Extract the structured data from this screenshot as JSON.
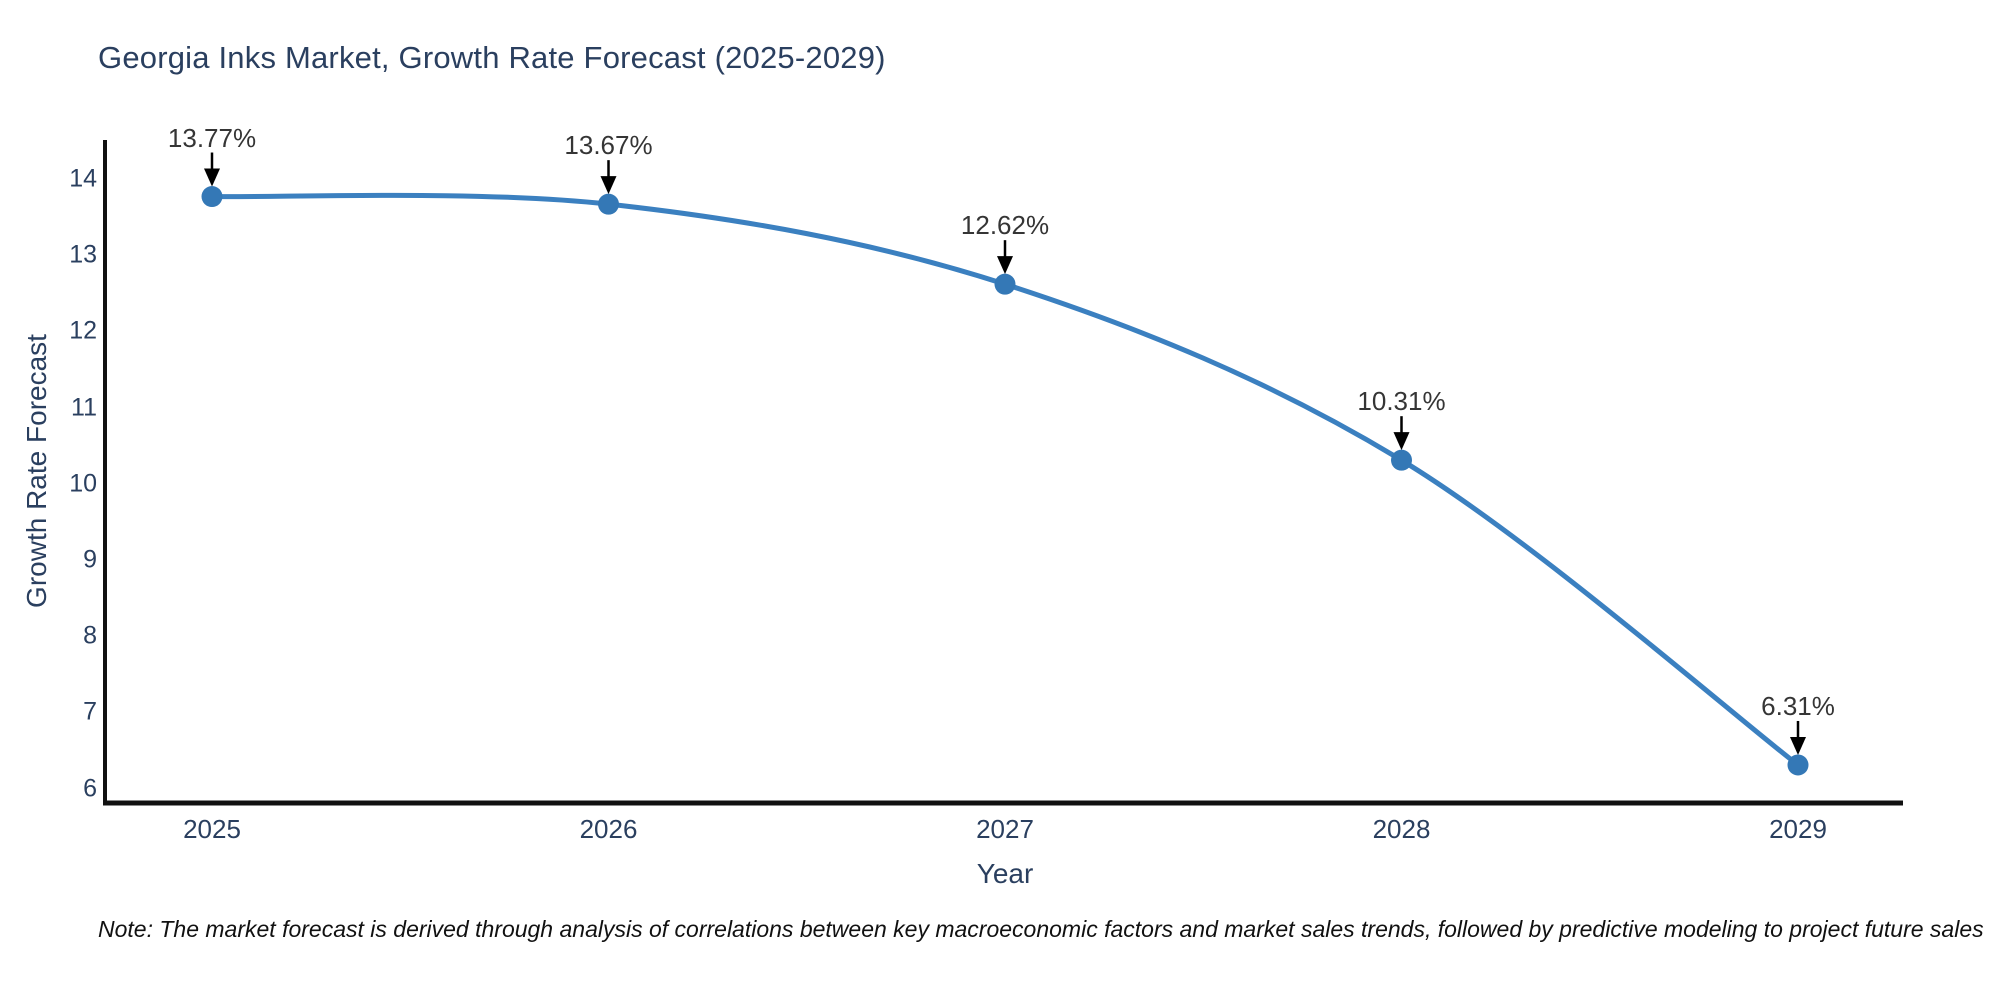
{
  "title": "Georgia Inks Market, Growth Rate Forecast (2025-2029)",
  "note": "Note: The market forecast is derived through analysis of correlations between key macroeconomic factors and market sales trends, followed by predictive modeling to project future sales",
  "chart_data": {
    "type": "line",
    "title": "Georgia Inks Market, Growth Rate Forecast (2025-2029)",
    "xlabel": "Year",
    "ylabel": "Growth Rate Forecast",
    "categories": [
      "2025",
      "2026",
      "2027",
      "2028",
      "2029"
    ],
    "values": [
      13.77,
      13.67,
      12.62,
      10.31,
      6.31
    ],
    "point_labels": [
      "13.77%",
      "13.67%",
      "12.62%",
      "10.31%",
      "6.31%"
    ],
    "yticks": [
      6,
      7,
      8,
      9,
      10,
      11,
      12,
      13,
      14
    ],
    "ylim": [
      6,
      14
    ],
    "line_shape": "spline",
    "grid": false,
    "legend": "none",
    "colors": {
      "line": "#3b80c0",
      "marker": "#3478b6",
      "axis": "#111111",
      "tick_text": "#2a3f5f",
      "annotation_text": "#353535",
      "arrow": "#000000",
      "background": "#ffffff"
    }
  }
}
